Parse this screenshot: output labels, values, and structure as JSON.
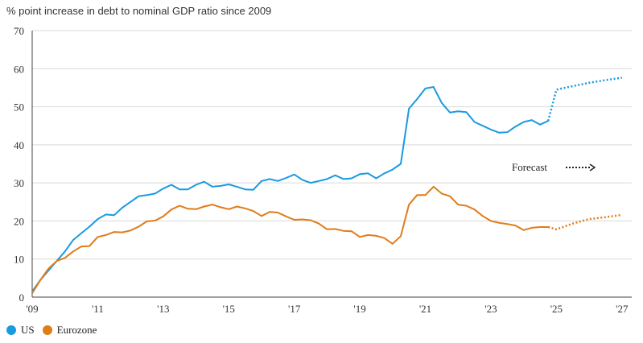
{
  "chart_data": {
    "type": "line",
    "title": "% point increase in debt to nominal GDP ratio since 2009",
    "xlabel": "",
    "ylabel": "",
    "xlim": [
      2009,
      2027.3
    ],
    "ylim": [
      0,
      70
    ],
    "yticks": [
      0,
      10,
      20,
      30,
      40,
      50,
      60,
      70
    ],
    "xticks": [
      {
        "value": 2009,
        "label": "'09"
      },
      {
        "value": 2011,
        "label": "'11"
      },
      {
        "value": 2013,
        "label": "'13"
      },
      {
        "value": 2015,
        "label": "'15"
      },
      {
        "value": 2017,
        "label": "'17"
      },
      {
        "value": 2019,
        "label": "'19"
      },
      {
        "value": 2021,
        "label": "'21"
      },
      {
        "value": 2023,
        "label": "'23"
      },
      {
        "value": 2025,
        "label": "'25"
      },
      {
        "value": 2027,
        "label": "'27"
      }
    ],
    "annotation": "Forecast",
    "legend_position": "bottom-left",
    "series": [
      {
        "name": "US",
        "color": "#1a9ae0",
        "actual": [
          [
            2009.0,
            1.5
          ],
          [
            2009.25,
            4.5
          ],
          [
            2009.5,
            7.0
          ],
          [
            2009.75,
            9.5
          ],
          [
            2010.0,
            12.0
          ],
          [
            2010.25,
            15.0
          ],
          [
            2010.5,
            16.8
          ],
          [
            2010.75,
            18.5
          ],
          [
            2011.0,
            20.5
          ],
          [
            2011.25,
            21.7
          ],
          [
            2011.5,
            21.5
          ],
          [
            2011.75,
            23.5
          ],
          [
            2012.0,
            25.0
          ],
          [
            2012.25,
            26.5
          ],
          [
            2012.5,
            26.8
          ],
          [
            2012.75,
            27.2
          ],
          [
            2013.0,
            28.5
          ],
          [
            2013.25,
            29.5
          ],
          [
            2013.5,
            28.3
          ],
          [
            2013.75,
            28.3
          ],
          [
            2014.0,
            29.5
          ],
          [
            2014.25,
            30.3
          ],
          [
            2014.5,
            29.0
          ],
          [
            2014.75,
            29.2
          ],
          [
            2015.0,
            29.6
          ],
          [
            2015.25,
            29.0
          ],
          [
            2015.5,
            28.3
          ],
          [
            2015.75,
            28.2
          ],
          [
            2016.0,
            30.5
          ],
          [
            2016.25,
            31.0
          ],
          [
            2016.5,
            30.5
          ],
          [
            2016.75,
            31.3
          ],
          [
            2017.0,
            32.2
          ],
          [
            2017.25,
            30.8
          ],
          [
            2017.5,
            30.0
          ],
          [
            2017.75,
            30.5
          ],
          [
            2018.0,
            31.0
          ],
          [
            2018.25,
            32.0
          ],
          [
            2018.5,
            31.0
          ],
          [
            2018.75,
            31.2
          ],
          [
            2019.0,
            32.3
          ],
          [
            2019.25,
            32.5
          ],
          [
            2019.5,
            31.2
          ],
          [
            2019.75,
            32.5
          ],
          [
            2020.0,
            33.5
          ],
          [
            2020.25,
            35.0
          ],
          [
            2020.5,
            49.5
          ],
          [
            2020.75,
            52.0
          ],
          [
            2021.0,
            54.8
          ],
          [
            2021.25,
            55.2
          ],
          [
            2021.5,
            51.0
          ],
          [
            2021.75,
            48.5
          ],
          [
            2022.0,
            48.8
          ],
          [
            2022.25,
            48.6
          ],
          [
            2022.5,
            46.0
          ],
          [
            2022.75,
            45.0
          ],
          [
            2023.0,
            44.0
          ],
          [
            2023.25,
            43.2
          ],
          [
            2023.5,
            43.3
          ],
          [
            2023.75,
            44.8
          ],
          [
            2024.0,
            46.0
          ],
          [
            2024.25,
            46.5
          ],
          [
            2024.5,
            45.3
          ],
          [
            2024.75,
            46.3
          ]
        ],
        "forecast": [
          [
            2024.75,
            46.3
          ],
          [
            2025.0,
            54.5
          ],
          [
            2025.5,
            55.4
          ],
          [
            2026.0,
            56.3
          ],
          [
            2026.5,
            57.0
          ],
          [
            2027.0,
            57.6
          ]
        ]
      },
      {
        "name": "Eurozone",
        "color": "#e07c1a",
        "actual": [
          [
            2009.0,
            1.0
          ],
          [
            2009.25,
            4.5
          ],
          [
            2009.5,
            7.5
          ],
          [
            2009.75,
            9.5
          ],
          [
            2010.0,
            10.3
          ],
          [
            2010.25,
            12.0
          ],
          [
            2010.5,
            13.3
          ],
          [
            2010.75,
            13.4
          ],
          [
            2011.0,
            15.8
          ],
          [
            2011.25,
            16.3
          ],
          [
            2011.5,
            17.1
          ],
          [
            2011.75,
            17.0
          ],
          [
            2012.0,
            17.5
          ],
          [
            2012.25,
            18.5
          ],
          [
            2012.5,
            19.9
          ],
          [
            2012.75,
            20.1
          ],
          [
            2013.0,
            21.2
          ],
          [
            2013.25,
            23.0
          ],
          [
            2013.5,
            24.0
          ],
          [
            2013.75,
            23.2
          ],
          [
            2014.0,
            23.1
          ],
          [
            2014.25,
            23.8
          ],
          [
            2014.5,
            24.3
          ],
          [
            2014.75,
            23.6
          ],
          [
            2015.0,
            23.1
          ],
          [
            2015.25,
            23.8
          ],
          [
            2015.5,
            23.3
          ],
          [
            2015.75,
            22.6
          ],
          [
            2016.0,
            21.3
          ],
          [
            2016.25,
            22.4
          ],
          [
            2016.5,
            22.2
          ],
          [
            2016.75,
            21.2
          ],
          [
            2017.0,
            20.3
          ],
          [
            2017.25,
            20.4
          ],
          [
            2017.5,
            20.2
          ],
          [
            2017.75,
            19.3
          ],
          [
            2018.0,
            17.8
          ],
          [
            2018.25,
            17.9
          ],
          [
            2018.5,
            17.4
          ],
          [
            2018.75,
            17.3
          ],
          [
            2019.0,
            15.8
          ],
          [
            2019.25,
            16.3
          ],
          [
            2019.5,
            16.1
          ],
          [
            2019.75,
            15.5
          ],
          [
            2020.0,
            14.0
          ],
          [
            2020.25,
            16.0
          ],
          [
            2020.5,
            24.3
          ],
          [
            2020.75,
            26.8
          ],
          [
            2021.0,
            26.8
          ],
          [
            2021.25,
            29.0
          ],
          [
            2021.5,
            27.2
          ],
          [
            2021.75,
            26.5
          ],
          [
            2022.0,
            24.3
          ],
          [
            2022.25,
            24.0
          ],
          [
            2022.5,
            23.0
          ],
          [
            2022.75,
            21.3
          ],
          [
            2023.0,
            20.0
          ],
          [
            2023.25,
            19.5
          ],
          [
            2023.5,
            19.2
          ],
          [
            2023.75,
            18.8
          ],
          [
            2024.0,
            17.6
          ],
          [
            2024.25,
            18.2
          ],
          [
            2024.5,
            18.4
          ],
          [
            2024.75,
            18.4
          ]
        ],
        "forecast": [
          [
            2024.75,
            18.4
          ],
          [
            2025.0,
            17.8
          ],
          [
            2025.5,
            19.3
          ],
          [
            2026.0,
            20.5
          ],
          [
            2026.5,
            21.0
          ],
          [
            2027.0,
            21.6
          ]
        ]
      }
    ]
  }
}
